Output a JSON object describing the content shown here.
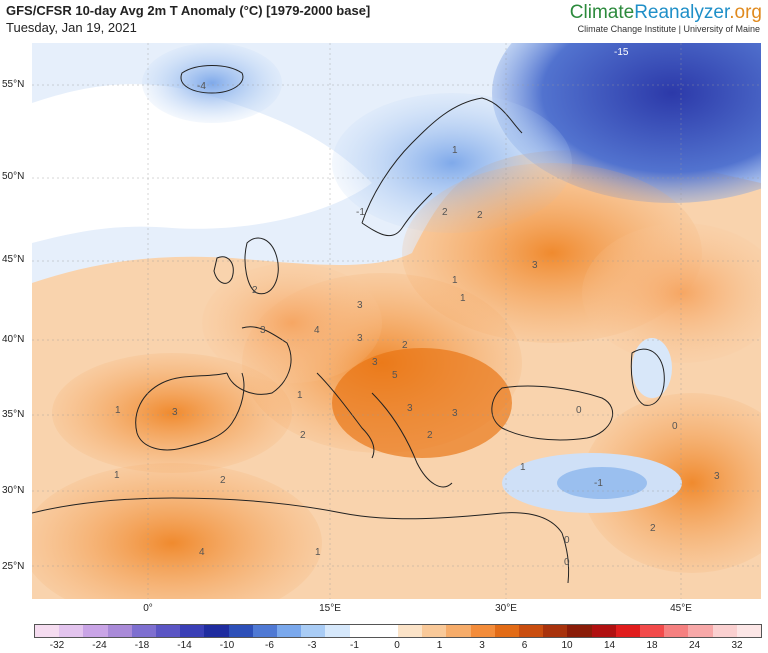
{
  "header": {
    "title": "GFS/CFSR 10-day Avg 2m T Anomaly (°C) [1979-2000 base]",
    "date": "Tuesday, Jan 19, 2021",
    "brand_part1": "Climate",
    "brand_part2": "Reanalyzer",
    "brand_part3": ".org",
    "brand_sub": "Climate Change Institute | University of Maine"
  },
  "axes": {
    "lat_labels": [
      "55°N",
      "50°N",
      "45°N",
      "40°N",
      "35°N",
      "30°N",
      "25°N"
    ],
    "lon_labels": [
      "0°",
      "15°E",
      "30°E",
      "45°E"
    ]
  },
  "map_labels": [
    "-15",
    "-4",
    "-1",
    "1",
    "1",
    "1",
    "2",
    "3",
    "2",
    "2",
    "3",
    "4",
    "3",
    "3",
    "3",
    "2",
    "5",
    "3",
    "3",
    "2",
    "3",
    "1",
    "1",
    "0",
    "1",
    "0",
    "-1",
    "3",
    "2",
    "2",
    "1",
    "4",
    "1",
    "0",
    "0",
    "2"
  ],
  "legend": {
    "ticks": [
      "-32",
      "-24",
      "-18",
      "-14",
      "-10",
      "-6",
      "-3",
      "-1",
      "0",
      "1",
      "3",
      "6",
      "10",
      "14",
      "18",
      "24",
      "32"
    ],
    "colors": [
      "#f5dcf0",
      "#e3c4ee",
      "#c9a4e6",
      "#a98ad8",
      "#7e6fd0",
      "#5b55c4",
      "#3a3fb6",
      "#1f2c9f",
      "#2d4fb8",
      "#4f79d4",
      "#7aa8ec",
      "#a9ccf5",
      "#d6e8fb",
      "#ffffff",
      "#ffffff",
      "#fbe3c8",
      "#f9c999",
      "#f6ac6a",
      "#f38c3a",
      "#e26b16",
      "#c94d0f",
      "#a8320c",
      "#8a1c08",
      "#b01010",
      "#e01c1c",
      "#f24a4a",
      "#f58080",
      "#f7a8a8",
      "#fad0d0",
      "#fce6e6"
    ]
  }
}
